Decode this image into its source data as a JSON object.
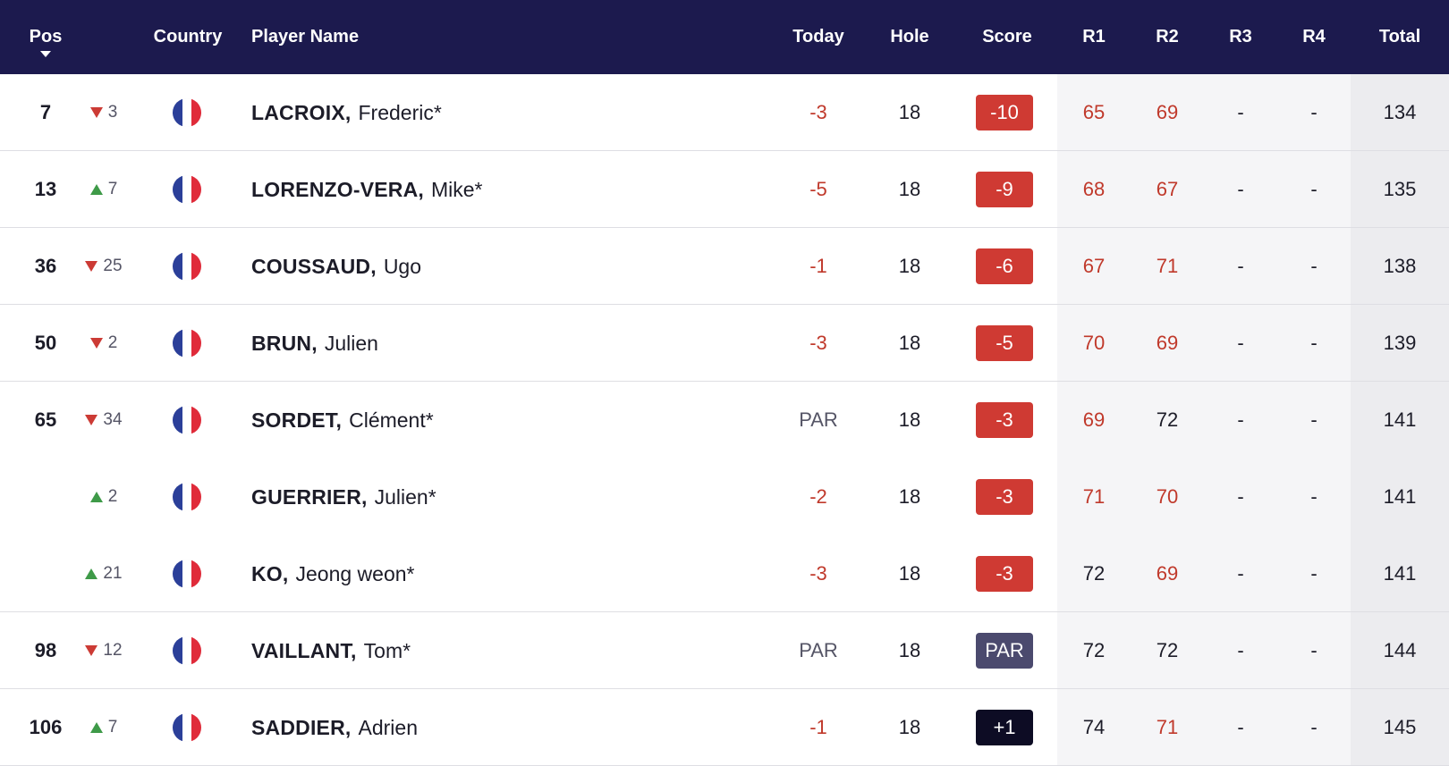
{
  "colors": {
    "header_bg": "#1c1a4e",
    "under_par": "#c0392b",
    "even": "#555566",
    "badge_under": "#cf3a33",
    "badge_par": "#4b4a6e",
    "badge_over": "#0d0c24"
  },
  "header": {
    "pos": "Pos",
    "country": "Country",
    "player_name": "Player Name",
    "today": "Today",
    "hole": "Hole",
    "score": "Score",
    "r1": "R1",
    "r2": "R2",
    "r3": "R3",
    "r4": "R4",
    "total": "Total",
    "sort_icon": "caret-down-icon"
  },
  "rows": [
    {
      "pos": "7",
      "move_dir": "down",
      "move": "3",
      "flag": "france-flag-icon",
      "last": "LACROIX,",
      "first": "Frederic*",
      "today": "-3",
      "today_status": "under",
      "hole": "18",
      "score": "-10",
      "score_status": "under",
      "r1": "65",
      "r1_status": "under",
      "r2": "69",
      "r2_status": "under",
      "r3": "-",
      "r4": "-",
      "total": "134",
      "sep": true
    },
    {
      "pos": "13",
      "move_dir": "up",
      "move": "7",
      "flag": "france-flag-icon",
      "last": "LORENZO-VERA,",
      "first": "Mike*",
      "today": "-5",
      "today_status": "under",
      "hole": "18",
      "score": "-9",
      "score_status": "under",
      "r1": "68",
      "r1_status": "under",
      "r2": "67",
      "r2_status": "under",
      "r3": "-",
      "r4": "-",
      "total": "135",
      "sep": true
    },
    {
      "pos": "36",
      "move_dir": "down",
      "move": "25",
      "flag": "france-flag-icon",
      "last": "COUSSAUD,",
      "first": "Ugo",
      "today": "-1",
      "today_status": "under",
      "hole": "18",
      "score": "-6",
      "score_status": "under",
      "r1": "67",
      "r1_status": "under",
      "r2": "71",
      "r2_status": "under",
      "r3": "-",
      "r4": "-",
      "total": "138",
      "sep": true
    },
    {
      "pos": "50",
      "move_dir": "down",
      "move": "2",
      "flag": "france-flag-icon",
      "last": "BRUN,",
      "first": "Julien",
      "today": "-3",
      "today_status": "under",
      "hole": "18",
      "score": "-5",
      "score_status": "under",
      "r1": "70",
      "r1_status": "under",
      "r2": "69",
      "r2_status": "under",
      "r3": "-",
      "r4": "-",
      "total": "139",
      "sep": true
    },
    {
      "pos": "65",
      "move_dir": "down",
      "move": "34",
      "flag": "france-flag-icon",
      "last": "SORDET,",
      "first": "Clément*",
      "today": "PAR",
      "today_status": "even",
      "hole": "18",
      "score": "-3",
      "score_status": "under",
      "r1": "69",
      "r1_status": "under",
      "r2": "72",
      "r2_status": "even",
      "r3": "-",
      "r4": "-",
      "total": "141",
      "sep": false
    },
    {
      "pos": "",
      "move_dir": "up",
      "move": "2",
      "flag": "france-flag-icon",
      "last": "GUERRIER,",
      "first": "Julien*",
      "today": "-2",
      "today_status": "under",
      "hole": "18",
      "score": "-3",
      "score_status": "under",
      "r1": "71",
      "r1_status": "under",
      "r2": "70",
      "r2_status": "under",
      "r3": "-",
      "r4": "-",
      "total": "141",
      "sep": false
    },
    {
      "pos": "",
      "move_dir": "up",
      "move": "21",
      "flag": "france-flag-icon",
      "last": "KO,",
      "first": "Jeong weon*",
      "today": "-3",
      "today_status": "under",
      "hole": "18",
      "score": "-3",
      "score_status": "under",
      "r1": "72",
      "r1_status": "even",
      "r2": "69",
      "r2_status": "under",
      "r3": "-",
      "r4": "-",
      "total": "141",
      "sep": true
    },
    {
      "pos": "98",
      "move_dir": "down",
      "move": "12",
      "flag": "france-flag-icon",
      "last": "VAILLANT,",
      "first": "Tom*",
      "today": "PAR",
      "today_status": "even",
      "hole": "18",
      "score": "PAR",
      "score_status": "par",
      "r1": "72",
      "r1_status": "even",
      "r2": "72",
      "r2_status": "even",
      "r3": "-",
      "r4": "-",
      "total": "144",
      "sep": true
    },
    {
      "pos": "106",
      "move_dir": "up",
      "move": "7",
      "flag": "france-flag-icon",
      "last": "SADDIER,",
      "first": "Adrien",
      "today": "-1",
      "today_status": "under",
      "hole": "18",
      "score": "+1",
      "score_status": "over",
      "r1": "74",
      "r1_status": "even",
      "r2": "71",
      "r2_status": "under",
      "r3": "-",
      "r4": "-",
      "total": "145",
      "sep": true
    }
  ]
}
